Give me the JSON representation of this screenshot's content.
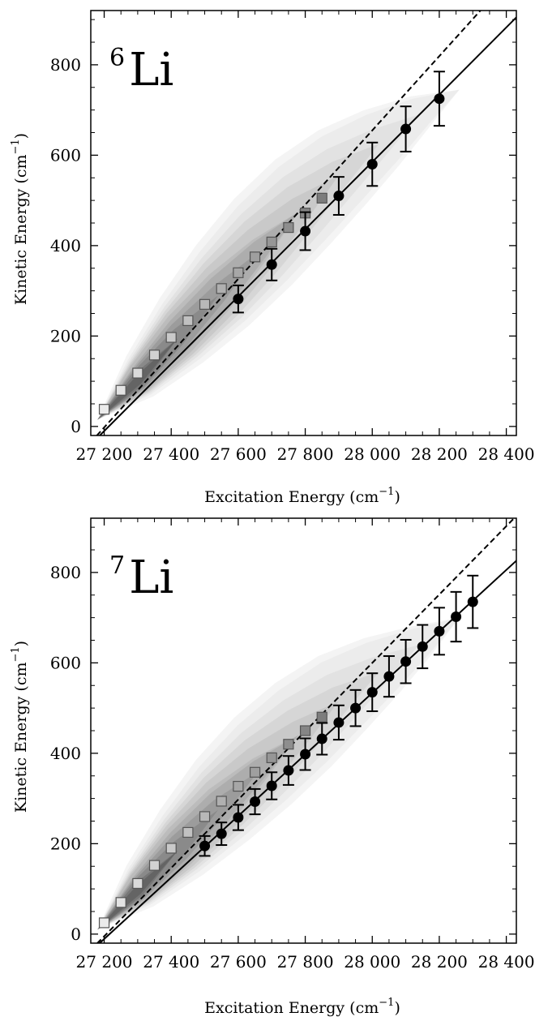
{
  "chart_data": [
    {
      "type": "scatter",
      "isotope_mass": "6",
      "isotope_symbol": "Li",
      "xlabel": "Excitation Energy (cm",
      "xlabel_exp": "−1",
      "xlabel_end": ")",
      "ylabel": "Kinetic Energy (cm",
      "ylabel_exp": "−1",
      "ylabel_end": ")",
      "xlim": [
        27160,
        28430
      ],
      "ylim": [
        -20,
        920
      ],
      "xticks": [
        27200,
        27400,
        27600,
        27800,
        28000,
        28200,
        28400
      ],
      "xtick_labels": [
        "27 200",
        "27 400",
        "27 600",
        "27 800",
        "28 000",
        "28 200",
        "28 400"
      ],
      "yticks": [
        0,
        200,
        400,
        600,
        800
      ],
      "ytick_labels": [
        "0",
        "200",
        "400",
        "600",
        "800"
      ],
      "lines": {
        "dashed": {
          "x": [
            27160,
            28430
          ],
          "y": [
            -35,
            1008
          ]
        },
        "solid": {
          "x": [
            27160,
            28430
          ],
          "y": [
            -40,
            905
          ]
        }
      },
      "squares": {
        "x": [
          27200,
          27250,
          27300,
          27350,
          27400,
          27450,
          27500,
          27550,
          27600,
          27650,
          27700,
          27750,
          27800,
          27850
        ],
        "y": [
          38,
          80,
          118,
          158,
          197,
          234,
          270,
          305,
          340,
          375,
          408,
          440,
          472,
          505
        ]
      },
      "circles": {
        "x": [
          27600,
          27700,
          27800,
          27900,
          28000,
          28100,
          28200
        ],
        "y": [
          282,
          358,
          432,
          510,
          580,
          658,
          725
        ],
        "err": [
          30,
          35,
          42,
          42,
          48,
          50,
          60
        ]
      },
      "contour": {
        "ridge_y": [
          15,
          100,
          195,
          290,
          385,
          475,
          555,
          625,
          690,
          745
        ],
        "x": [
          27180,
          27300,
          27420,
          27540,
          27660,
          27780,
          27900,
          28020,
          28140,
          28260
        ]
      }
    },
    {
      "type": "scatter",
      "isotope_mass": "7",
      "isotope_symbol": "Li",
      "xlabel": "Excitation Energy (cm",
      "xlabel_exp": "−1",
      "xlabel_end": ")",
      "ylabel": "Kinetic Energy (cm",
      "ylabel_exp": "−1",
      "ylabel_end": ")",
      "xlim": [
        27160,
        28430
      ],
      "ylim": [
        -20,
        920
      ],
      "xticks": [
        27200,
        27400,
        27600,
        27800,
        28000,
        28200,
        28400
      ],
      "xtick_labels": [
        "27 200",
        "27 400",
        "27 600",
        "27 800",
        "28 000",
        "28 200",
        "28 400"
      ],
      "yticks": [
        0,
        200,
        400,
        600,
        800
      ],
      "ytick_labels": [
        "0",
        "200",
        "400",
        "600",
        "800"
      ],
      "lines": {
        "dashed": {
          "x": [
            27160,
            28430
          ],
          "y": [
            -35,
            925
          ]
        },
        "solid": {
          "x": [
            27160,
            28430
          ],
          "y": [
            -38,
            826
          ]
        }
      },
      "squares": {
        "x": [
          27200,
          27250,
          27300,
          27350,
          27400,
          27450,
          27500,
          27550,
          27600,
          27650,
          27700,
          27750,
          27800,
          27850
        ],
        "y": [
          25,
          70,
          112,
          152,
          190,
          225,
          260,
          294,
          327,
          358,
          390,
          420,
          450,
          480
        ]
      },
      "circles": {
        "x": [
          27500,
          27550,
          27600,
          27650,
          27700,
          27750,
          27800,
          27850,
          27900,
          27950,
          28000,
          28050,
          28100,
          28150,
          28200,
          28250,
          28300
        ],
        "y": [
          195,
          222,
          258,
          293,
          328,
          362,
          398,
          432,
          468,
          500,
          535,
          570,
          603,
          636,
          670,
          702,
          735
        ],
        "err": [
          22,
          25,
          28,
          28,
          30,
          32,
          35,
          35,
          38,
          40,
          42,
          45,
          48,
          48,
          52,
          55,
          58
        ]
      },
      "contour": {
        "ridge_y": [
          10,
          95,
          185,
          275,
          360,
          440,
          515,
          580,
          640,
          700
        ],
        "x": [
          27180,
          27300,
          27420,
          27540,
          27660,
          27780,
          27900,
          28020,
          28140,
          28260
        ]
      }
    }
  ]
}
